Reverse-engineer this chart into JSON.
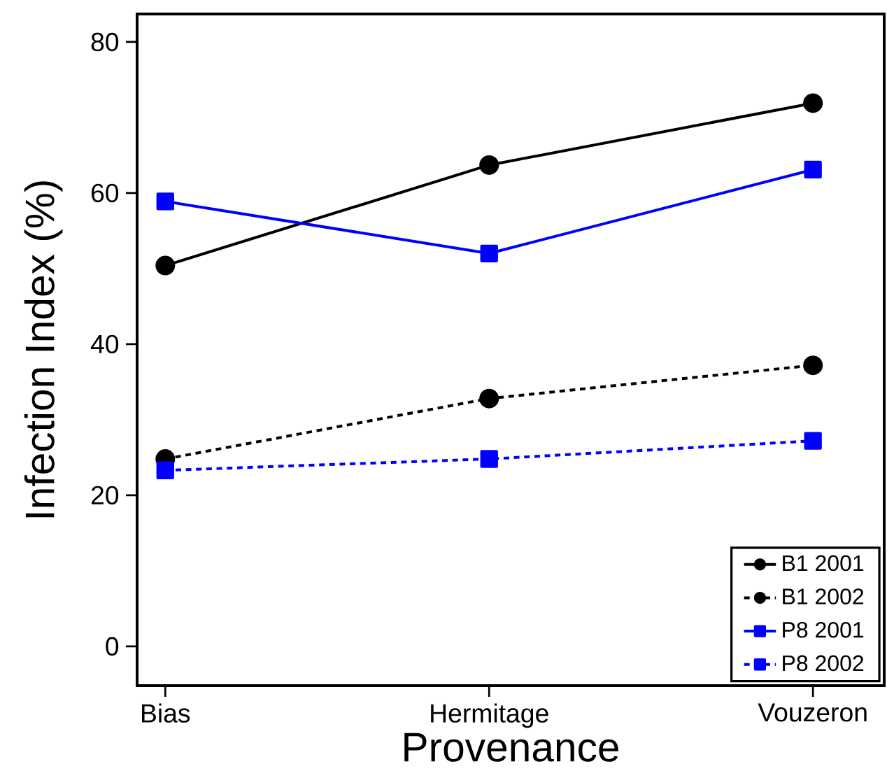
{
  "chart_data": {
    "type": "line",
    "xlabel": "Provenance",
    "ylabel": "Infection Index (%)",
    "categories": [
      "Bias",
      "Hermitage",
      "Vouzeron"
    ],
    "series": [
      {
        "name": "B1 2001",
        "color": "#000000",
        "values": [
          50.4,
          63.7,
          71.9
        ],
        "marker": "circle",
        "line_style": "solid"
      },
      {
        "name": "B1 2002",
        "color": "#000000",
        "values": [
          24.8,
          32.8,
          37.2
        ],
        "marker": "circle",
        "line_style": "dotted"
      },
      {
        "name": "P8 2001",
        "color": "#0000ff",
        "values": [
          58.9,
          52.0,
          63.1
        ],
        "marker": "square",
        "line_style": "solid"
      },
      {
        "name": "P8 2002",
        "color": "#0000ff",
        "values": [
          23.3,
          24.8,
          27.2
        ],
        "marker": "square",
        "line_style": "dotted"
      }
    ],
    "ylim": [
      -5.2,
      83.7
    ],
    "yticks": [
      0,
      20,
      40,
      60,
      80
    ],
    "grid": false,
    "legend": "bottom right"
  }
}
